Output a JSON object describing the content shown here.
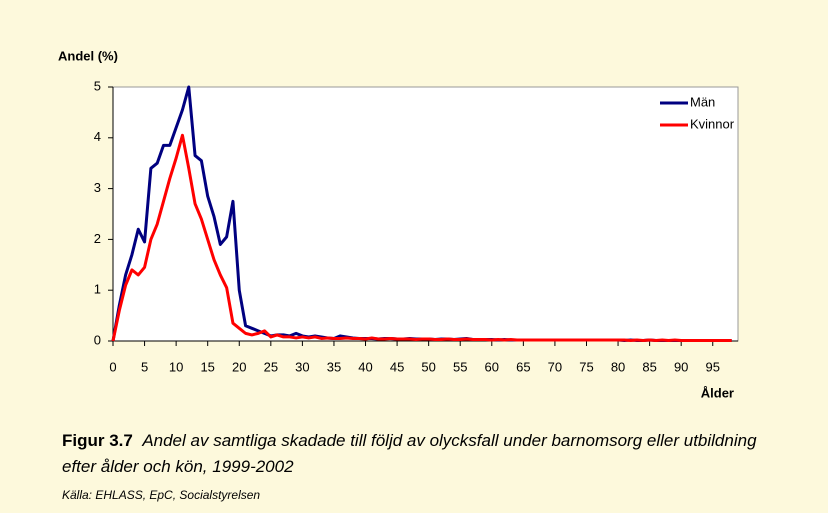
{
  "chart_data": {
    "type": "line",
    "y_label": "Andel (%)",
    "x_label": "Ålder",
    "x": [
      0,
      1,
      2,
      3,
      4,
      5,
      6,
      7,
      8,
      9,
      10,
      11,
      12,
      13,
      14,
      15,
      16,
      17,
      18,
      19,
      20,
      21,
      22,
      23,
      24,
      25,
      26,
      27,
      28,
      29,
      30,
      31,
      32,
      33,
      34,
      35,
      36,
      37,
      38,
      39,
      40,
      41,
      42,
      43,
      44,
      45,
      46,
      47,
      48,
      49,
      50,
      51,
      52,
      53,
      54,
      55,
      56,
      57,
      58,
      59,
      60,
      61,
      62,
      63,
      64,
      65,
      66,
      67,
      68,
      69,
      70,
      71,
      72,
      73,
      74,
      75,
      76,
      77,
      78,
      79,
      80,
      81,
      82,
      83,
      84,
      85,
      86,
      87,
      88,
      89,
      90,
      91,
      92,
      93,
      94,
      95,
      96,
      97,
      98
    ],
    "series": [
      {
        "name": "Män",
        "color": "#000080",
        "values": [
          0,
          0.7,
          1.3,
          1.7,
          2.2,
          1.95,
          3.4,
          3.5,
          3.85,
          3.85,
          4.2,
          4.55,
          5.0,
          3.65,
          3.55,
          2.85,
          2.45,
          1.9,
          2.05,
          2.75,
          1.0,
          0.3,
          0.25,
          0.2,
          0.15,
          0.1,
          0.12,
          0.12,
          0.1,
          0.15,
          0.1,
          0.08,
          0.1,
          0.08,
          0.06,
          0.05,
          0.1,
          0.08,
          0.06,
          0.05,
          0.05,
          0.05,
          0.04,
          0.05,
          0.05,
          0.04,
          0.04,
          0.05,
          0.04,
          0.04,
          0.04,
          0.03,
          0.04,
          0.04,
          0.03,
          0.04,
          0.05,
          0.03,
          0.03,
          0.03,
          0.03,
          0.02,
          0.03,
          0.02,
          0.02,
          0.02,
          0.02,
          0.02,
          0.02,
          0.02,
          0.02,
          0.02,
          0.02,
          0.02,
          0.02,
          0.02,
          0.02,
          0.02,
          0.02,
          0.02,
          0.02,
          0.01,
          0.02,
          0.01,
          0.01,
          0.02,
          0.01,
          0.01,
          0.01,
          0.01,
          0.01,
          0.01,
          0.01,
          0.01,
          0.01,
          0.01,
          0.01,
          0.01,
          0.01
        ]
      },
      {
        "name": "Kvinnor",
        "color": "#ff0000",
        "values": [
          0,
          0.6,
          1.1,
          1.4,
          1.3,
          1.45,
          2.0,
          2.3,
          2.75,
          3.2,
          3.6,
          4.05,
          3.4,
          2.7,
          2.4,
          2.0,
          1.6,
          1.3,
          1.05,
          0.35,
          0.25,
          0.15,
          0.12,
          0.15,
          0.2,
          0.08,
          0.12,
          0.08,
          0.08,
          0.06,
          0.08,
          0.06,
          0.08,
          0.05,
          0.06,
          0.05,
          0.05,
          0.06,
          0.05,
          0.05,
          0.04,
          0.06,
          0.04,
          0.04,
          0.05,
          0.04,
          0.04,
          0.04,
          0.03,
          0.04,
          0.04,
          0.03,
          0.03,
          0.04,
          0.03,
          0.03,
          0.04,
          0.03,
          0.03,
          0.03,
          0.02,
          0.03,
          0.02,
          0.03,
          0.02,
          0.02,
          0.02,
          0.02,
          0.02,
          0.02,
          0.02,
          0.02,
          0.02,
          0.02,
          0.02,
          0.02,
          0.02,
          0.02,
          0.02,
          0.02,
          0.02,
          0.02,
          0.01,
          0.02,
          0.01,
          0.02,
          0.01,
          0.02,
          0.01,
          0.02,
          0.01,
          0.01,
          0.01,
          0.01,
          0.01,
          0.01,
          0.01,
          0.01,
          0.01
        ]
      }
    ],
    "xlim": [
      0,
      99
    ],
    "xticks": [
      0,
      5,
      10,
      15,
      20,
      25,
      30,
      35,
      40,
      45,
      50,
      55,
      60,
      65,
      70,
      75,
      80,
      85,
      90,
      95
    ],
    "ylim": [
      0,
      5
    ],
    "yticks": [
      0,
      1,
      2,
      3,
      4,
      5
    ],
    "legend": "upper right"
  },
  "caption": {
    "label": "Figur 3.7",
    "text": "Andel av samtliga skadade till följd av olycksfall under barnomsorg eller utbildning efter ålder och kön, 1999-2002",
    "source": "Källa: EHLASS, EpC, Socialstyrelsen"
  }
}
